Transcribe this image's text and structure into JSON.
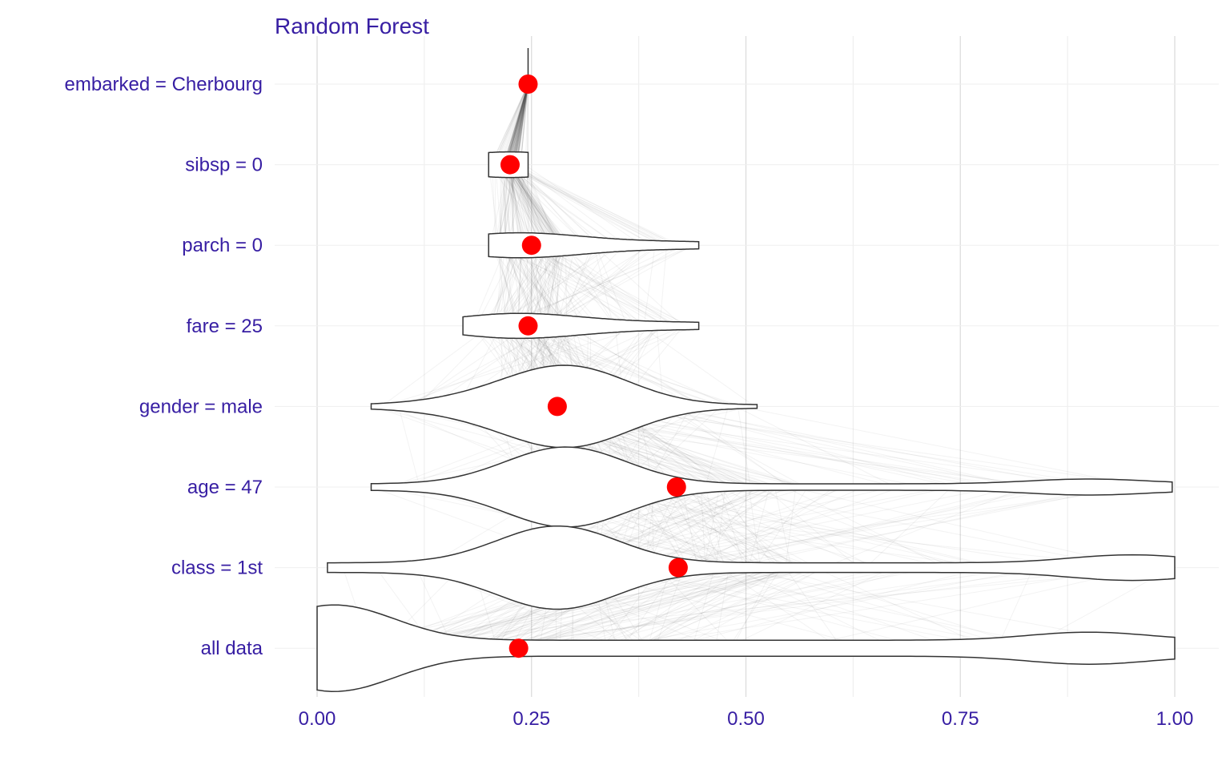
{
  "colors": {
    "text": "#371ea3",
    "point": "#ff0000",
    "grid": "#e6e6e6",
    "violin_stroke": "#333333",
    "line": "#555555"
  },
  "chart_data": {
    "type": "violin",
    "title": "Random Forest",
    "xlabel": "",
    "ylabel": "",
    "xlim": [
      0,
      1
    ],
    "x_ticks": [
      "0.00",
      "0.25",
      "0.50",
      "0.75",
      "1.00"
    ],
    "x_tick_values": [
      0,
      0.25,
      0.5,
      0.75,
      1.0
    ],
    "grid": true,
    "categories": [
      "embarked = Cherbourg",
      "sibsp = 0",
      "parch = 0",
      "fare = 25",
      "gender = male",
      "age = 47",
      "class = 1st",
      "all data"
    ],
    "observation_values": [
      0.246,
      0.225,
      0.25,
      0.246,
      0.28,
      0.419,
      0.421,
      0.235
    ],
    "distribution_ranges": [
      [
        0.246,
        0.246
      ],
      [
        0.2,
        0.246
      ],
      [
        0.2,
        0.445
      ],
      [
        0.17,
        0.445
      ],
      [
        0.063,
        0.513
      ],
      [
        0.063,
        0.997
      ],
      [
        0.012,
        1.0
      ],
      [
        0.0,
        1.0
      ]
    ]
  }
}
